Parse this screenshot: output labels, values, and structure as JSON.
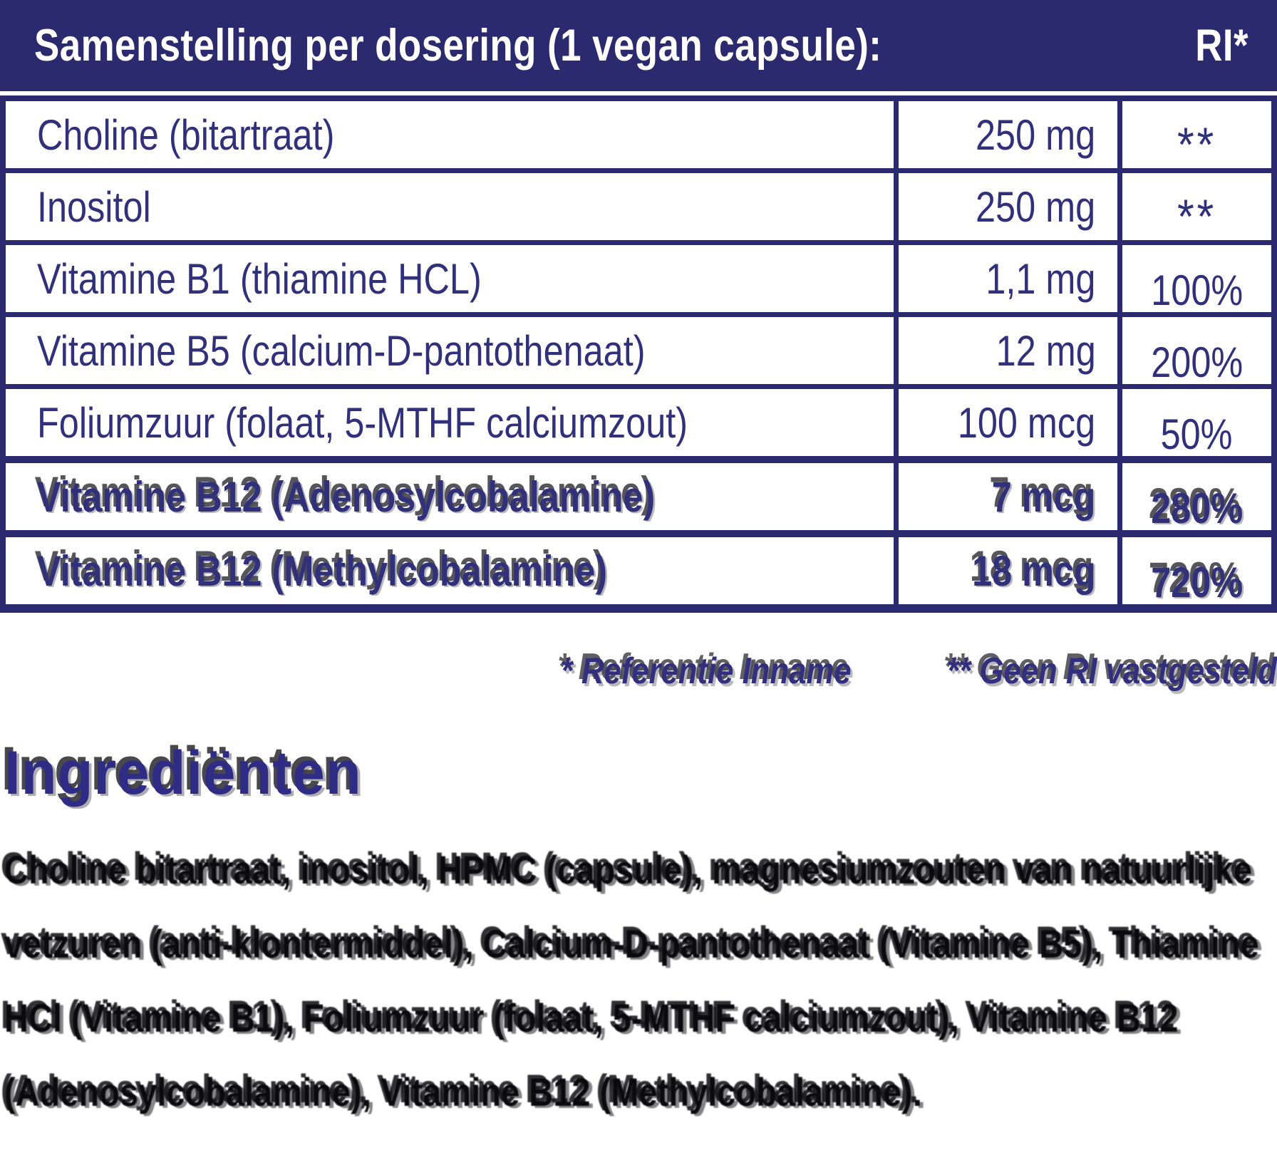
{
  "colors": {
    "navy_band": "#2b2a6e",
    "table_text": "#31307a",
    "heading_navy": "#2e2c85",
    "body_black": "#0a0a0e",
    "ghost_gray": "#37373e"
  },
  "header": {
    "title": "Samenstelling per dosering (1 vegan capsule):",
    "ri_label": "RI*"
  },
  "table": {
    "rows": [
      {
        "name": "Choline (bitartraat)",
        "amount": "250 mg",
        "ri": "**"
      },
      {
        "name": "Inositol",
        "amount": "250 mg",
        "ri": "**"
      },
      {
        "name": "Vitamine B1 (thiamine HCL)",
        "amount": "1,1 mg",
        "ri": "100%"
      },
      {
        "name": "Vitamine B5 (calcium-D-pantothenaat)",
        "amount": "12 mg",
        "ri": "200%"
      },
      {
        "name": "Foliumzuur (folaat, 5-MTHF calciumzout)",
        "amount": "100 mcg",
        "ri": "50%"
      },
      {
        "name": "Vitamine B12 (Adenosylcobalamine)",
        "amount": "7 mcg",
        "ri": "280%"
      },
      {
        "name": "Vitamine B12 (Methylcobalamine)",
        "amount": "18 mcg",
        "ri": "720%"
      }
    ]
  },
  "footnotes": {
    "reference": "* Referentie Inname",
    "no_ri": "** Geen RI vastgesteld"
  },
  "ingredients": {
    "heading": "Ingrediënten",
    "body": "Choline bitartraat, inositol, HPMC (capsule), magnesiumzouten van natuurlijke vetzuren (anti-klontermiddel), Calcium-D-pantothenaat (Vitamine B5), Thiamine HCl (Vitamine B1), Foliumzuur (folaat, 5-MTHF calciumzout), Vitamine B12 (Adenosylcobalamine), Vitamine B12 (Methylcobalamine)."
  }
}
